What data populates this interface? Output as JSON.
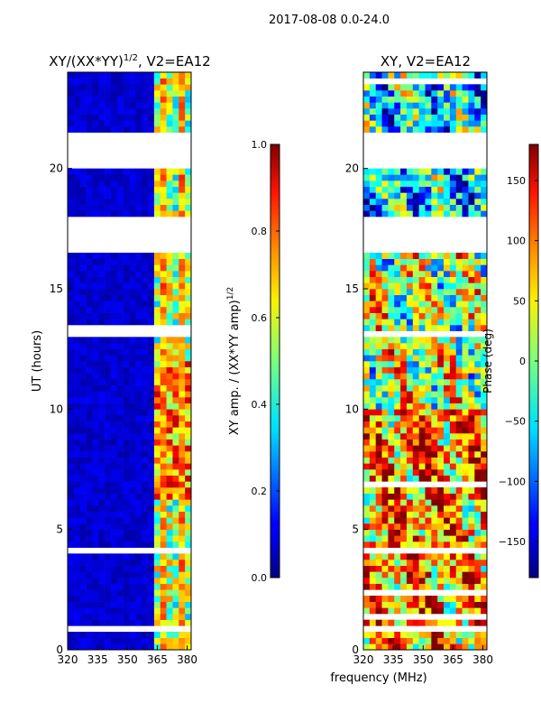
{
  "figure_title": "2017-08-08 0.0-24.0",
  "xlabel": "frequency (MHz)",
  "chart_data": [
    {
      "type": "heatmap",
      "title_prefix": "XY/(XX*YY)",
      "title_exponent": "1/2",
      "title_suffix": ", V2=EA12",
      "ylabel": "UT (hours)",
      "xlim": [
        320,
        382
      ],
      "ylim": [
        0,
        24
      ],
      "xticks": [
        "320",
        "335",
        "350",
        "365",
        "380"
      ],
      "yticks": [
        "0",
        "5",
        "10",
        "15",
        "20"
      ],
      "colorbar": {
        "label_prefix": "XY amp. / (XX*YY amp)",
        "label_exponent": "1/2",
        "range": [
          0.0,
          1.0
        ],
        "ticks": [
          "0.0",
          "0.2",
          "0.4",
          "0.6",
          "0.8",
          "1.0"
        ]
      }
    },
    {
      "type": "heatmap",
      "title": "XY, V2=EA12",
      "xlim": [
        320,
        382
      ],
      "ylim": [
        0,
        24
      ],
      "xticks": [
        "320",
        "335",
        "350",
        "365",
        "380"
      ],
      "yticks": [
        "0",
        "5",
        "10",
        "15",
        "20"
      ],
      "colorbar": {
        "label": "Phase (deg)",
        "range": [
          -180,
          180
        ],
        "ticks": [
          "−150",
          "−100",
          "−50",
          "0",
          "50",
          "100",
          "150"
        ]
      }
    }
  ],
  "data_gaps_ut_hours": [
    [
      0.7,
      0.9
    ],
    [
      3.9,
      4.3
    ],
    [
      16.6,
      17.6
    ],
    [
      17.65,
      18.05
    ],
    [
      20.0,
      20.9
    ],
    [
      21.1,
      21.5
    ]
  ],
  "high_amplitude_band_mhz": [
    362,
    381
  ]
}
